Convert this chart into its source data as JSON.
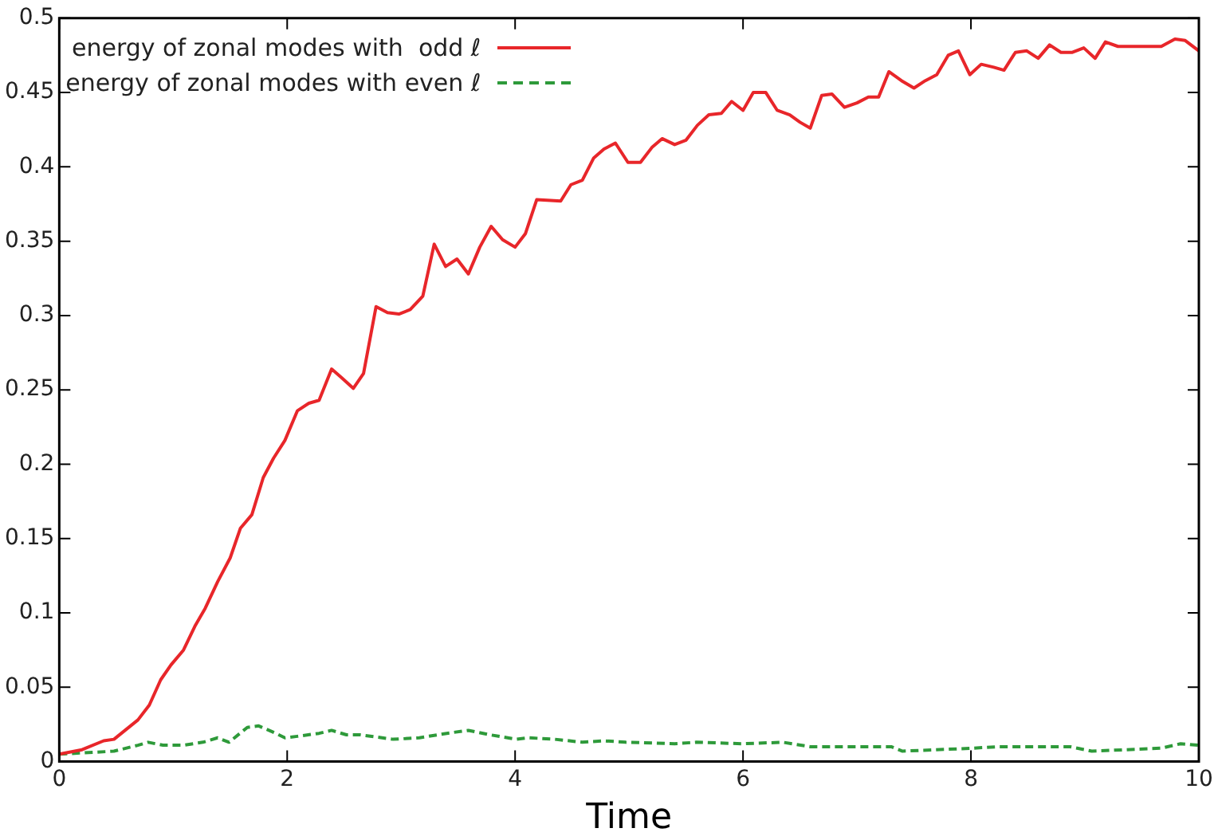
{
  "chart_data": {
    "type": "line",
    "xlabel": "Time",
    "xlim": [
      0,
      10
    ],
    "xticks": [
      0,
      2,
      4,
      6,
      8,
      10
    ],
    "ylim": [
      0,
      0.5
    ],
    "yticks": [
      0,
      0.05,
      0.1,
      0.15,
      0.2,
      0.25,
      0.3,
      0.35,
      0.4,
      0.45,
      0.5
    ],
    "grid": false,
    "legend": "top left",
    "marker": "none",
    "series": [
      {
        "name": "energy of zonal modes with  odd ℓ",
        "color": "#e8262a",
        "line_style": "solid",
        "x": [
          0,
          0.2,
          0.39,
          0.48,
          0.69,
          0.79,
          0.89,
          0.98,
          1.09,
          1.19,
          1.28,
          1.39,
          1.5,
          1.59,
          1.69,
          1.79,
          1.88,
          1.98,
          2.09,
          2.19,
          2.28,
          2.39,
          2.48,
          2.58,
          2.67,
          2.78,
          2.88,
          2.98,
          3.08,
          3.19,
          3.29,
          3.39,
          3.49,
          3.59,
          3.69,
          3.79,
          3.89,
          4.0,
          4.09,
          4.19,
          4.4,
          4.49,
          4.59,
          4.69,
          4.78,
          4.88,
          4.99,
          5.1,
          5.2,
          5.29,
          5.4,
          5.5,
          5.6,
          5.7,
          5.81,
          5.9,
          6.0,
          6.09,
          6.2,
          6.3,
          6.41,
          6.5,
          6.59,
          6.69,
          6.78,
          6.89,
          7.0,
          7.1,
          7.19,
          7.28,
          7.39,
          7.5,
          7.6,
          7.7,
          7.8,
          7.89,
          7.99,
          8.09,
          8.2,
          8.29,
          8.39,
          8.49,
          8.59,
          8.69,
          8.79,
          8.89,
          8.99,
          9.09,
          9.18,
          9.29,
          9.67,
          9.79,
          9.88,
          10.0
        ],
        "values": [
          0.005,
          0.008,
          0.014,
          0.015,
          0.028,
          0.038,
          0.055,
          0.065,
          0.075,
          0.091,
          0.103,
          0.121,
          0.137,
          0.157,
          0.166,
          0.191,
          0.204,
          0.216,
          0.236,
          0.241,
          0.243,
          0.264,
          0.258,
          0.251,
          0.261,
          0.306,
          0.302,
          0.301,
          0.304,
          0.313,
          0.348,
          0.333,
          0.338,
          0.328,
          0.346,
          0.36,
          0.351,
          0.346,
          0.355,
          0.378,
          0.377,
          0.388,
          0.391,
          0.406,
          0.412,
          0.416,
          0.403,
          0.403,
          0.413,
          0.419,
          0.415,
          0.418,
          0.428,
          0.435,
          0.436,
          0.444,
          0.438,
          0.45,
          0.45,
          0.438,
          0.435,
          0.43,
          0.426,
          0.448,
          0.449,
          0.44,
          0.443,
          0.447,
          0.447,
          0.464,
          0.458,
          0.453,
          0.458,
          0.462,
          0.475,
          0.478,
          0.462,
          0.469,
          0.467,
          0.465,
          0.477,
          0.478,
          0.473,
          0.482,
          0.477,
          0.477,
          0.48,
          0.473,
          0.484,
          0.481,
          0.481,
          0.486,
          0.485,
          0.478
        ]
      },
      {
        "name": "energy of zonal modes with even ℓ",
        "color": "#2e9a3a",
        "line_style": "dashed",
        "x": [
          0,
          0.48,
          0.69,
          0.78,
          0.91,
          1.09,
          1.26,
          1.39,
          1.49,
          1.65,
          1.75,
          1.9,
          1.98,
          2.09,
          2.28,
          2.39,
          2.52,
          2.64,
          2.93,
          3.16,
          3.4,
          3.59,
          3.78,
          4.01,
          4.12,
          4.35,
          4.59,
          4.78,
          4.97,
          5.4,
          5.59,
          6.0,
          6.35,
          6.59,
          7.3,
          7.4,
          8.01,
          8.25,
          8.87,
          9.06,
          9.67,
          9.84,
          10.0
        ],
        "values": [
          0.005,
          0.007,
          0.011,
          0.013,
          0.011,
          0.011,
          0.013,
          0.016,
          0.013,
          0.023,
          0.024,
          0.019,
          0.016,
          0.017,
          0.019,
          0.021,
          0.018,
          0.018,
          0.015,
          0.016,
          0.019,
          0.021,
          0.018,
          0.015,
          0.016,
          0.015,
          0.013,
          0.014,
          0.013,
          0.012,
          0.013,
          0.012,
          0.013,
          0.01,
          0.01,
          0.007,
          0.009,
          0.01,
          0.01,
          0.007,
          0.009,
          0.012,
          0.011
        ]
      }
    ]
  }
}
